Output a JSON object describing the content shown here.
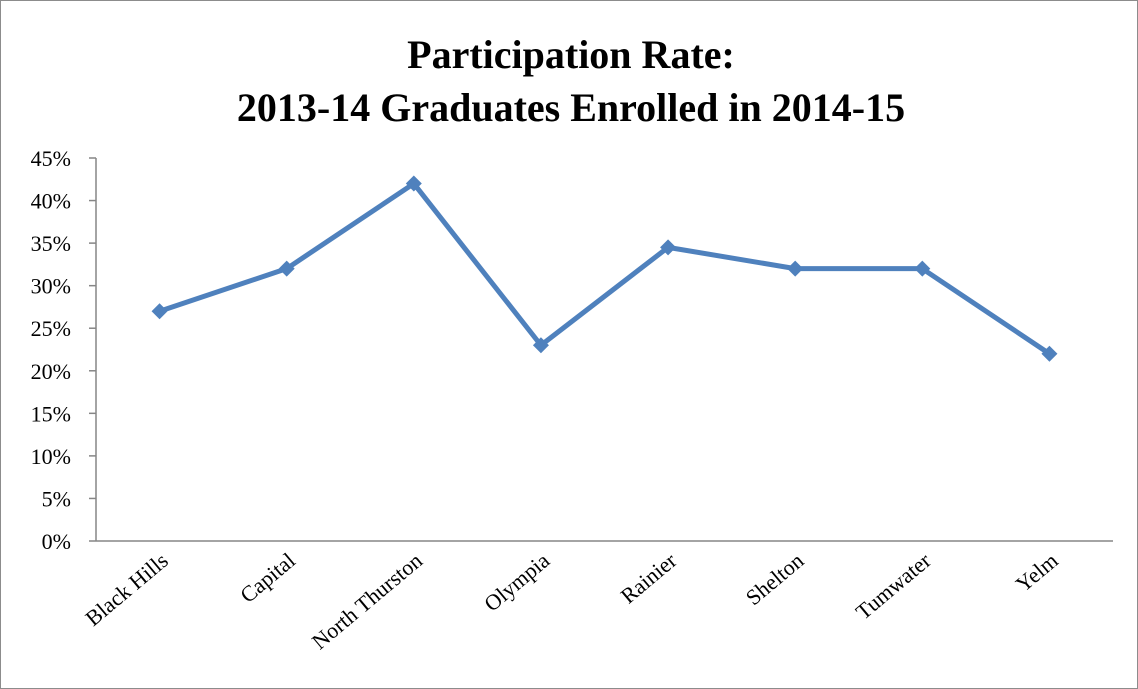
{
  "chart_data": {
    "type": "line",
    "title_lines": [
      "Participation Rate:",
      "2013-14 Graduates Enrolled in 2014-15"
    ],
    "xlabel": "",
    "ylabel": "",
    "categories": [
      "Black Hills",
      "Capital",
      "North Thurston",
      "Olympia",
      "Rainier",
      "Shelton",
      "Tumwater",
      "Yelm"
    ],
    "series": [
      {
        "values": [
          27,
          32,
          42,
          23,
          34.5,
          32,
          32,
          22
        ]
      }
    ],
    "ylim": [
      0,
      45
    ],
    "yticks": [
      "0%",
      "5%",
      "10%",
      "15%",
      "20%",
      "25%",
      "30%",
      "35%",
      "40%",
      "45%"
    ],
    "grid": false,
    "legend": "none",
    "colors": {
      "line": "#4f81bd",
      "axis": "#868686"
    }
  }
}
